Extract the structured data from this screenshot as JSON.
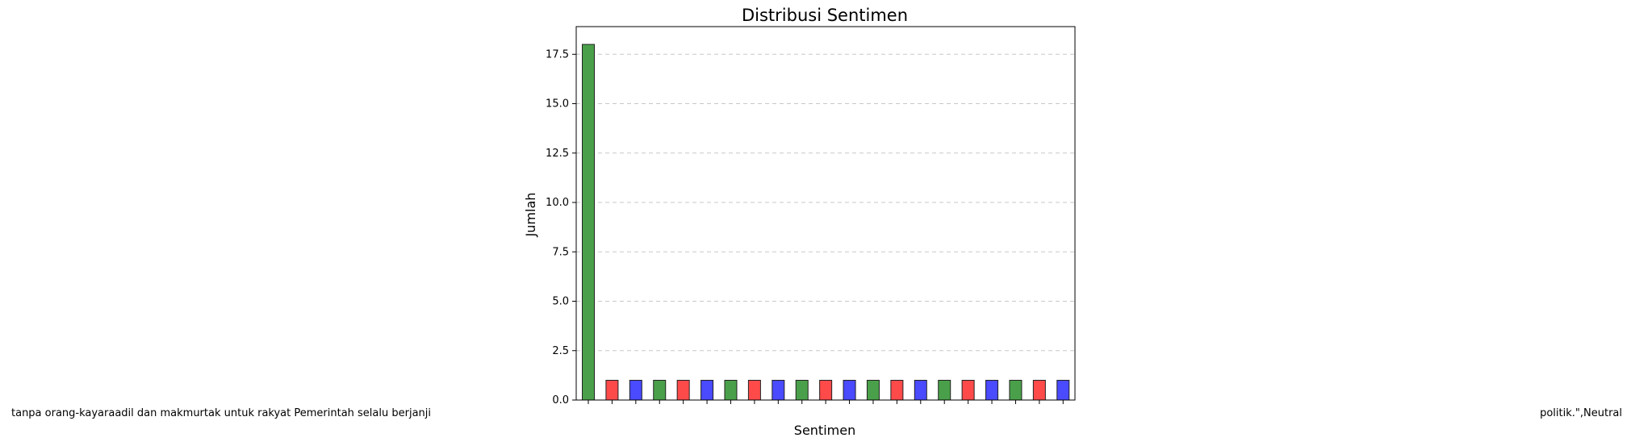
{
  "chart_data": {
    "type": "bar",
    "title": "Distribusi Sentimen",
    "xlabel": "Sentimen",
    "ylabel": "Jumlah",
    "ylim": [
      0,
      18.9
    ],
    "yticks": [
      "0.0",
      "2.5",
      "5.0",
      "7.5",
      "10.0",
      "12.5",
      "15.0",
      "17.5"
    ],
    "ytick_values": [
      0,
      2.5,
      5,
      7.5,
      10,
      12.5,
      15,
      17.5
    ],
    "grid": "y-dashed",
    "categories": [
      "",
      "",
      "",
      "",
      "",
      "",
      "",
      "",
      "",
      "",
      "",
      "",
      "",
      "",
      "",
      "",
      "",
      "",
      "",
      "",
      ""
    ],
    "values": [
      18,
      1,
      1,
      1,
      1,
      1,
      1,
      1,
      1,
      1,
      1,
      1,
      1,
      1,
      1,
      1,
      1,
      1,
      1,
      1,
      1
    ],
    "colors": [
      "#4aa04a",
      "#ff4a4a",
      "#4a4aff",
      "#4aa04a",
      "#ff4a4a",
      "#4a4aff",
      "#4aa04a",
      "#ff4a4a",
      "#4a4aff",
      "#4aa04a",
      "#ff4a4a",
      "#4a4aff",
      "#4aa04a",
      "#ff4a4a",
      "#4a4aff",
      "#4aa04a",
      "#ff4a4a",
      "#4a4aff",
      "#4aa04a",
      "#ff4a4a",
      "#4a4aff"
    ],
    "overflow_text_left": "tanpa orang-kayaraadil dan makmurtak untuk rakyat Pemerintah selalu berjanji",
    "overflow_text_right": "politik.\",Neutral"
  }
}
